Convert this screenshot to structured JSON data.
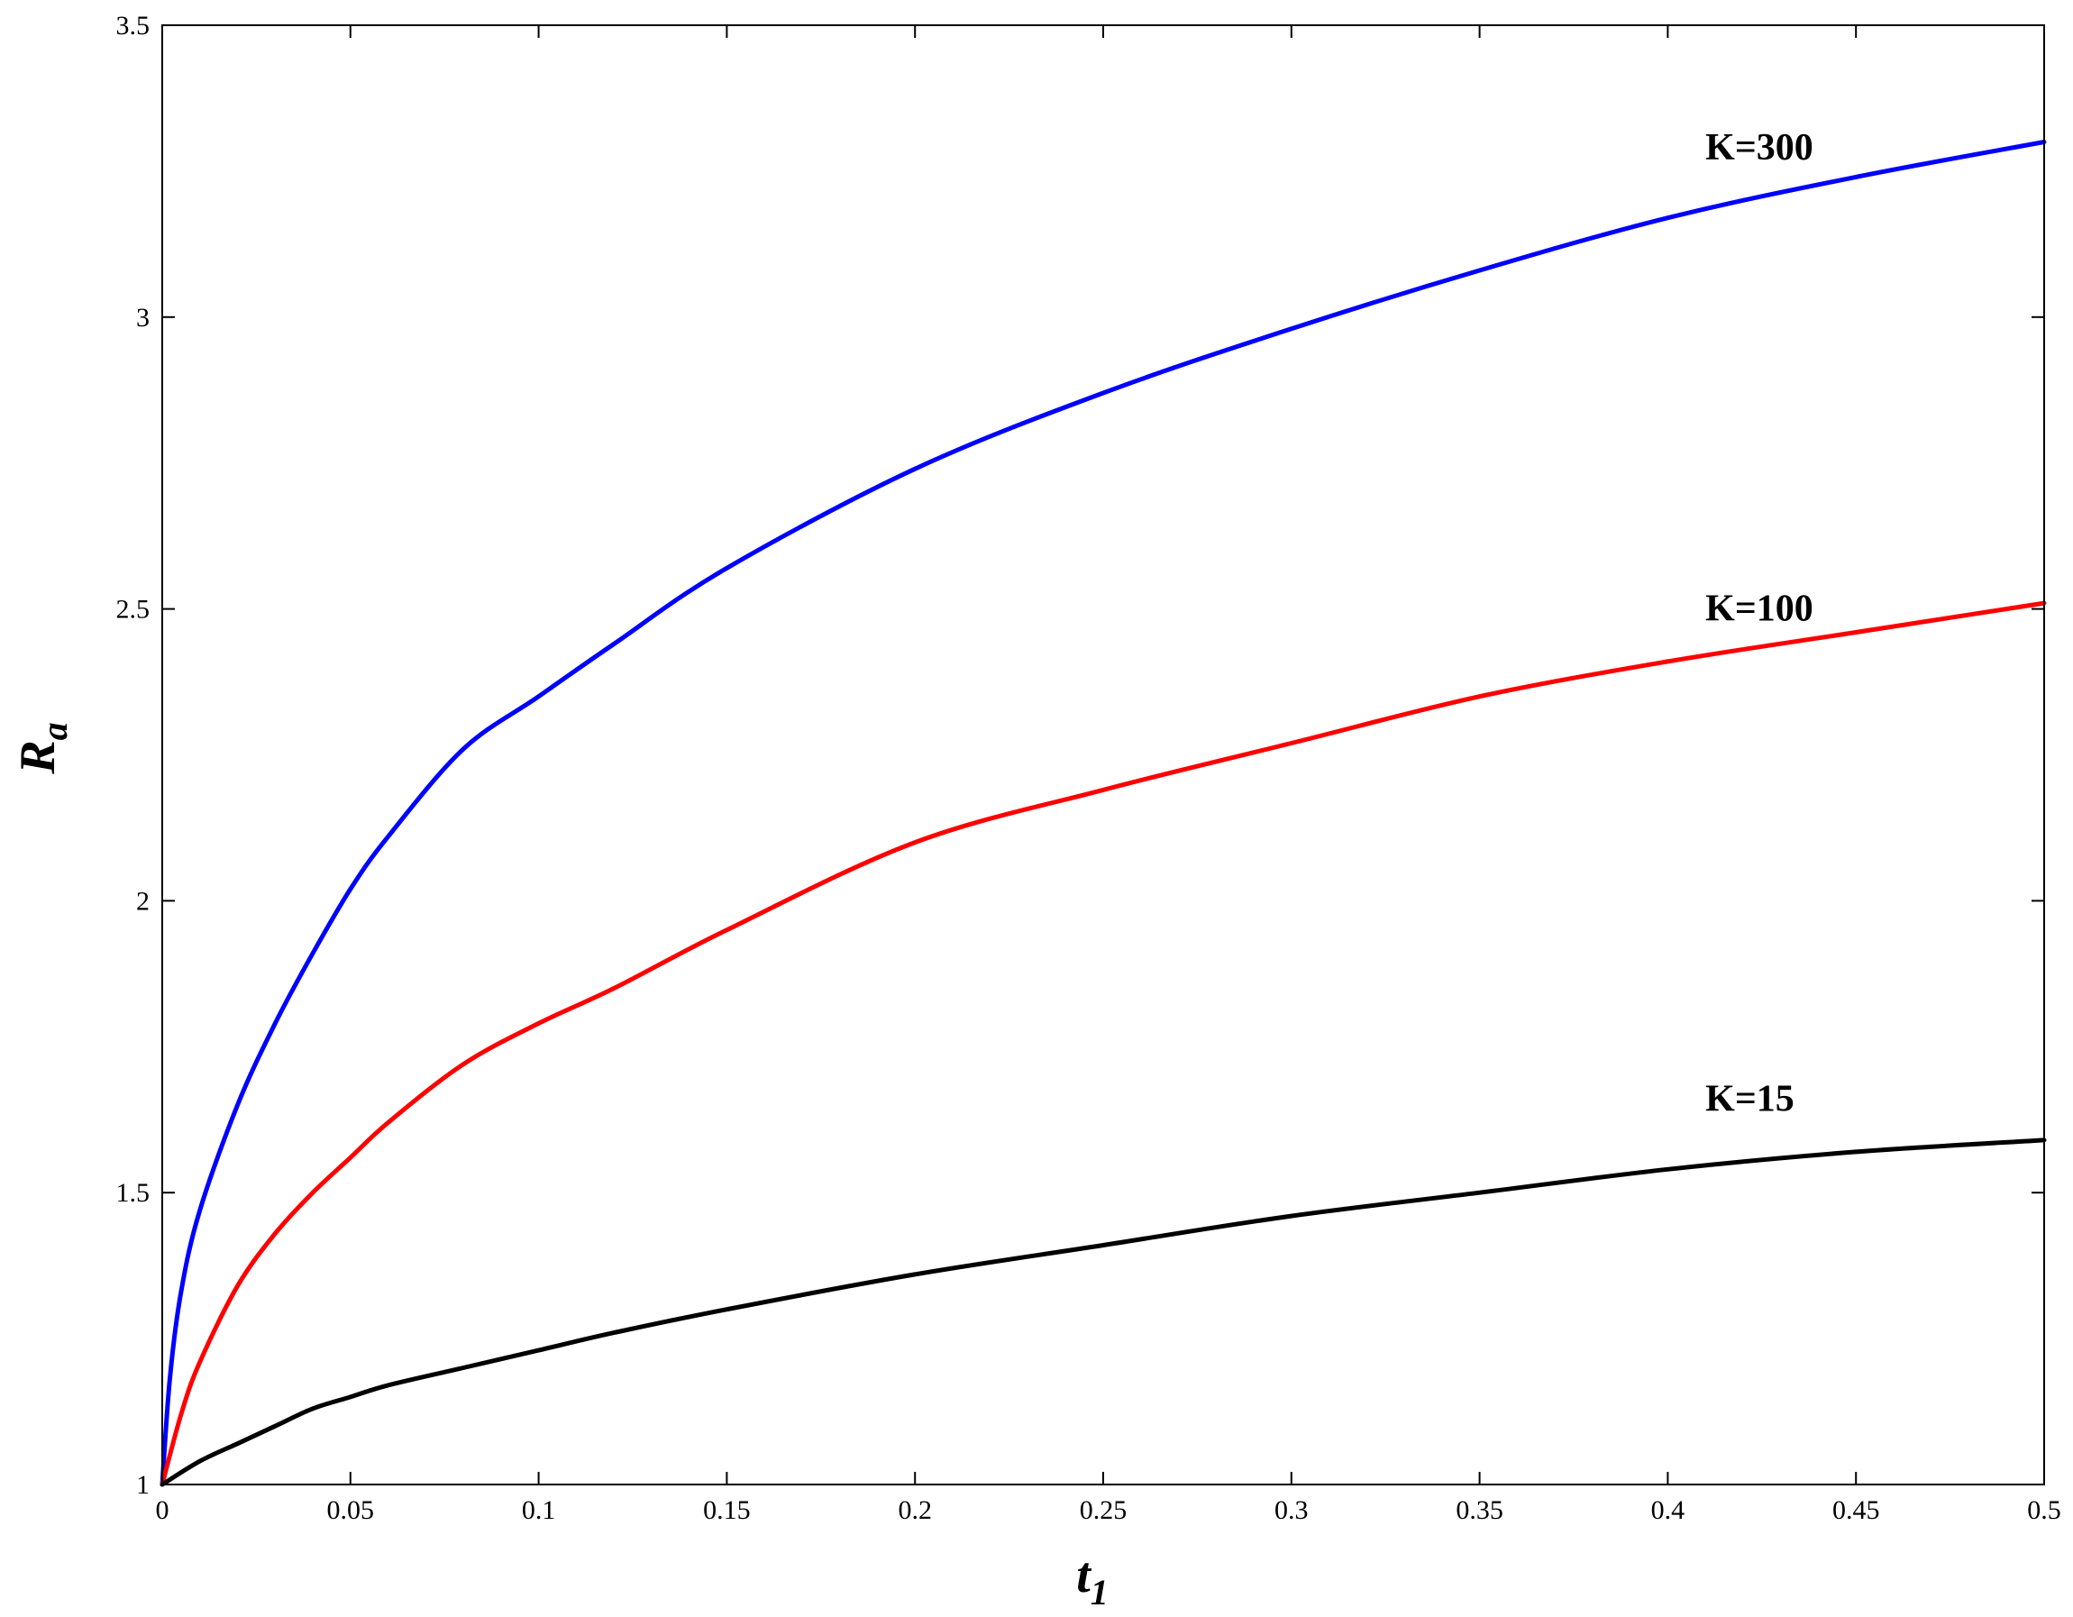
{
  "chart_data": {
    "type": "line",
    "xlabel": "t",
    "xlabel_sub": "1",
    "ylabel": "R",
    "ylabel_sub": "a",
    "xlim": [
      0,
      0.5
    ],
    "ylim": [
      1,
      3.5
    ],
    "xticks": [
      0,
      0.05,
      0.1,
      0.15,
      0.2,
      0.25,
      0.3,
      0.35,
      0.4,
      0.45,
      0.5
    ],
    "xtick_labels": [
      "0",
      "0.05",
      "0.1",
      "0.15",
      "0.2",
      "0.25",
      "0.3",
      "0.35",
      "0.4",
      "0.45",
      "0.5"
    ],
    "yticks": [
      1,
      1.5,
      2,
      2.5,
      3,
      3.5
    ],
    "ytick_labels": [
      "1",
      "1.5",
      "2",
      "2.5",
      "3",
      "3.5"
    ],
    "grid": false,
    "series": [
      {
        "name": "K=300",
        "color": "#0000ff",
        "x": [
          0,
          0.002,
          0.005,
          0.01,
          0.02,
          0.03,
          0.04,
          0.05,
          0.06,
          0.08,
          0.1,
          0.12,
          0.15,
          0.2,
          0.25,
          0.3,
          0.35,
          0.4,
          0.45,
          0.5
        ],
        "y": [
          1.0,
          1.18,
          1.33,
          1.47,
          1.65,
          1.79,
          1.91,
          2.02,
          2.11,
          2.26,
          2.35,
          2.44,
          2.57,
          2.74,
          2.87,
          2.98,
          3.08,
          3.17,
          3.24,
          3.3
        ]
      },
      {
        "name": "K=100",
        "color": "#ff0000",
        "x": [
          0,
          0.005,
          0.01,
          0.02,
          0.03,
          0.04,
          0.05,
          0.06,
          0.08,
          0.1,
          0.12,
          0.15,
          0.2,
          0.25,
          0.3,
          0.35,
          0.4,
          0.45,
          0.5
        ],
        "y": [
          1.0,
          1.12,
          1.21,
          1.34,
          1.43,
          1.5,
          1.56,
          1.62,
          1.72,
          1.79,
          1.85,
          1.95,
          2.1,
          2.19,
          2.27,
          2.35,
          2.41,
          2.46,
          2.51
        ]
      },
      {
        "name": "K=15",
        "color": "#000000",
        "x": [
          0,
          0.01,
          0.02,
          0.03,
          0.04,
          0.05,
          0.06,
          0.08,
          0.1,
          0.12,
          0.15,
          0.2,
          0.25,
          0.3,
          0.35,
          0.4,
          0.45,
          0.5
        ],
        "y": [
          1.0,
          1.04,
          1.07,
          1.1,
          1.13,
          1.15,
          1.17,
          1.2,
          1.23,
          1.26,
          1.3,
          1.36,
          1.41,
          1.46,
          1.5,
          1.54,
          1.57,
          1.59
        ]
      }
    ],
    "annotations": [
      {
        "text": "K=300",
        "x": 0.41,
        "y": 3.27
      },
      {
        "text": "K=100",
        "x": 0.41,
        "y": 2.48
      },
      {
        "text": "K=15",
        "x": 0.41,
        "y": 1.64
      }
    ]
  }
}
